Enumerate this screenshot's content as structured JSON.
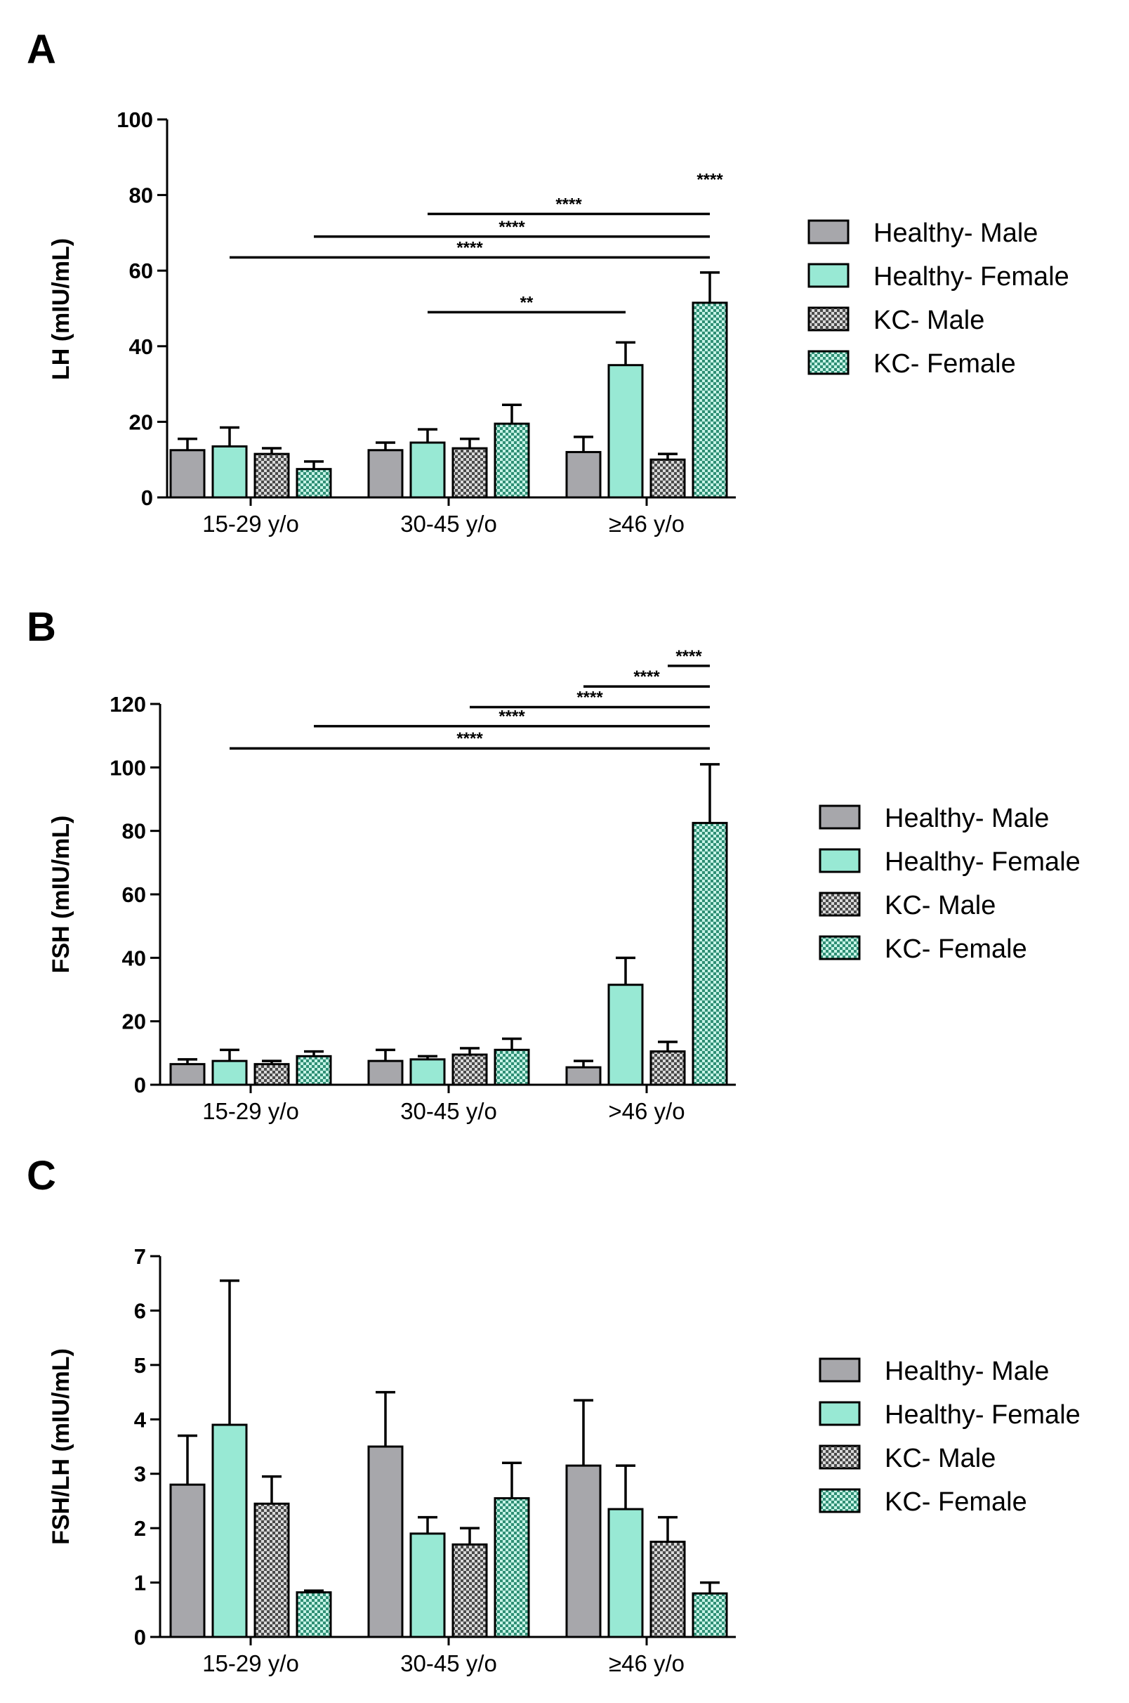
{
  "figure": {
    "legend_items": [
      {
        "name": "Healthy- Male",
        "fill": "#a7a7ab",
        "pattern": "solid"
      },
      {
        "name": "Healthy- Female",
        "fill": "#98e9d4",
        "pattern": "solid"
      },
      {
        "name": "KC- Male",
        "fill": "#6f6f6f",
        "pattern": "check"
      },
      {
        "name": "KC- Female",
        "fill": "#5fbfa3",
        "pattern": "check"
      }
    ]
  },
  "chart_data": [
    {
      "panel": "A",
      "type": "bar",
      "ylabel": "LH (mIU/mL)",
      "ylim": [
        0,
        100
      ],
      "yticks": [
        0,
        20,
        40,
        60,
        80,
        100
      ],
      "categories": [
        "15-29 y/o",
        "30-45 y/o",
        "≥46 y/o"
      ],
      "series": [
        {
          "name": "Healthy- Male",
          "values": [
            12.5,
            12.5,
            12
          ],
          "errors": [
            3,
            2,
            4
          ]
        },
        {
          "name": "Healthy- Female",
          "values": [
            13.5,
            14.5,
            35
          ],
          "errors": [
            5,
            3.5,
            6
          ]
        },
        {
          "name": "KC- Male",
          "values": [
            11.5,
            13,
            10
          ],
          "errors": [
            1.5,
            2.5,
            1.5
          ]
        },
        {
          "name": "KC- Female",
          "values": [
            7.5,
            19.5,
            51.5
          ],
          "errors": [
            2,
            5,
            8
          ]
        }
      ],
      "significance": [
        {
          "from": [
            2,
            3
          ],
          "to": [
            2,
            3
          ],
          "label": "****",
          "y": 81.5
        },
        {
          "from": [
            1,
            1
          ],
          "to": [
            2,
            3
          ],
          "label": "****",
          "y": 75
        },
        {
          "from": [
            0,
            3
          ],
          "to": [
            2,
            3
          ],
          "label": "****",
          "y": 69
        },
        {
          "from": [
            0,
            1
          ],
          "to": [
            2,
            3
          ],
          "label": "****",
          "y": 63.5
        },
        {
          "from": [
            1,
            1
          ],
          "to": [
            2,
            1
          ],
          "label": "**",
          "y": 49
        }
      ]
    },
    {
      "panel": "B",
      "type": "bar",
      "ylabel": "FSH (mIU/mL)",
      "ylim": [
        0,
        120
      ],
      "yticks": [
        0,
        20,
        40,
        60,
        80,
        100,
        120
      ],
      "categories": [
        "15-29 y/o",
        "30-45 y/o",
        ">46 y/o"
      ],
      "series": [
        {
          "name": "Healthy- Male",
          "values": [
            6.5,
            7.5,
            5.5
          ],
          "errors": [
            1.5,
            3.5,
            2
          ]
        },
        {
          "name": "Healthy- Female",
          "values": [
            7.5,
            8,
            31.5
          ],
          "errors": [
            3.5,
            1,
            8.5
          ]
        },
        {
          "name": "KC- Male",
          "values": [
            6.5,
            9.5,
            10.5
          ],
          "errors": [
            1,
            2,
            3
          ]
        },
        {
          "name": "KC- Female",
          "values": [
            9,
            11,
            82.5
          ],
          "errors": [
            1.5,
            3.5,
            18.5
          ]
        }
      ],
      "significance": [
        {
          "from": [
            2,
            2
          ],
          "to": [
            2,
            3
          ],
          "label": "****",
          "y": 132
        },
        {
          "from": [
            2,
            0
          ],
          "to": [
            2,
            3
          ],
          "label": "****",
          "y": 125.5
        },
        {
          "from": [
            1,
            2
          ],
          "to": [
            2,
            3
          ],
          "label": "****",
          "y": 119
        },
        {
          "from": [
            0,
            3
          ],
          "to": [
            2,
            3
          ],
          "label": "****",
          "y": 113
        },
        {
          "from": [
            0,
            1
          ],
          "to": [
            2,
            3
          ],
          "label": "****",
          "y": 106
        }
      ]
    },
    {
      "panel": "C",
      "type": "bar",
      "ylabel": "FSH/LH (mIU/mL)",
      "ylim": [
        0,
        7
      ],
      "yticks": [
        0,
        1,
        2,
        3,
        4,
        5,
        6,
        7
      ],
      "categories": [
        "15-29 y/o",
        "30-45 y/o",
        "≥46 y/o"
      ],
      "series": [
        {
          "name": "Healthy- Male",
          "values": [
            2.8,
            3.5,
            3.15
          ],
          "errors": [
            0.9,
            1.0,
            1.2
          ]
        },
        {
          "name": "Healthy- Female",
          "values": [
            3.9,
            1.9,
            2.35
          ],
          "errors": [
            2.65,
            0.3,
            0.8
          ]
        },
        {
          "name": "KC- Male",
          "values": [
            2.45,
            1.7,
            1.75
          ],
          "errors": [
            0.5,
            0.3,
            0.45
          ]
        },
        {
          "name": "KC- Female",
          "values": [
            0.82,
            2.55,
            0.8
          ],
          "errors": [
            0.03,
            0.65,
            0.2
          ]
        }
      ],
      "significance": []
    }
  ]
}
